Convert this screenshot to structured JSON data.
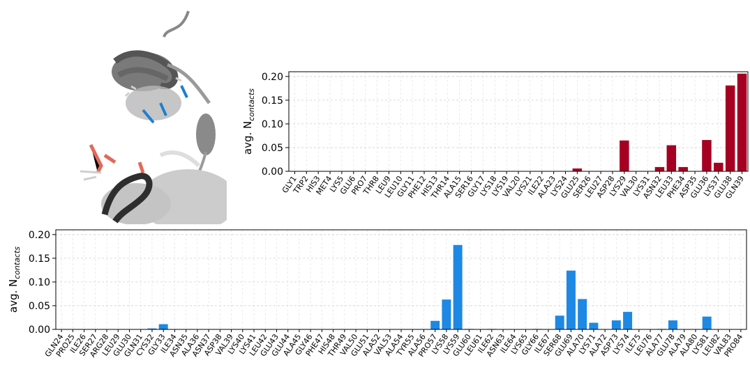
{
  "chart_data": [
    {
      "type": "bar",
      "ylabel": "avg. N",
      "ylabel_sub": "contacts",
      "ylim": [
        0,
        0.21
      ],
      "yticks": [
        "0.00",
        "0.05",
        "0.10",
        "0.15",
        "0.20"
      ],
      "grid": true,
      "color": "#a50021",
      "categories": [
        "GLY1",
        "TRP2",
        "HIS3",
        "MET4",
        "LYS5",
        "GLU6",
        "PRO7",
        "THR8",
        "LEU9",
        "LEU10",
        "GLY11",
        "PHE12",
        "HIS13",
        "THR14",
        "ALA15",
        "SER16",
        "GLY17",
        "LYS18",
        "LYS19",
        "VAL20",
        "LYS21",
        "ILE22",
        "ALA23",
        "LYS24",
        "GLU25",
        "SER26",
        "LEU27",
        "ASP28",
        "LYS29",
        "VAL30",
        "LYS31",
        "ASN32",
        "LEU33",
        "PHE34",
        "ASP35",
        "GLU36",
        "LYS37",
        "GLU38",
        "GLN39"
      ],
      "values": [
        0,
        0,
        0,
        0,
        0,
        0,
        0,
        0,
        0,
        0,
        0,
        0,
        0,
        0,
        0,
        0,
        0,
        0,
        0,
        0,
        0,
        0,
        0,
        0,
        0.006,
        0,
        0,
        0,
        0.065,
        0,
        0,
        0.009,
        0.055,
        0.009,
        0,
        0.066,
        0.018,
        0.181,
        0.206
      ]
    },
    {
      "type": "bar",
      "ylabel": "avg. N",
      "ylabel_sub": "contacts",
      "ylim": [
        0,
        0.21
      ],
      "yticks": [
        "0.00",
        "0.05",
        "0.10",
        "0.15",
        "0.20"
      ],
      "grid": true,
      "color": "#1e88e5",
      "categories": [
        "GLN24",
        "PRO25",
        "ILE26",
        "SER27",
        "ARG28",
        "LEU29",
        "GLU30",
        "GLN31",
        "CYS32",
        "GLY33",
        "ILE34",
        "ASN35",
        "ALA36",
        "ASN37",
        "ASP38",
        "VAL39",
        "LYS40",
        "LYS41",
        "LEU42",
        "GLU43",
        "GLU44",
        "ALA45",
        "GLY46",
        "PHE47",
        "HIS48",
        "THR49",
        "VAL50",
        "GLU51",
        "ALA52",
        "VAL53",
        "ALA54",
        "TYR55",
        "ALA56",
        "PRO57",
        "LYS58",
        "LYS59",
        "GLU60",
        "LEU61",
        "ILE62",
        "ASN63",
        "ILE64",
        "LYS65",
        "GLY66",
        "ILE67",
        "SER68",
        "GLU69",
        "ALA70",
        "LYS71",
        "ALA72",
        "ASP73",
        "LYS74",
        "ILE75",
        "LEU76",
        "ALA77",
        "GLU78",
        "ALA79",
        "ALA80",
        "LYS81",
        "LEU82",
        "VAL83",
        "PRO84"
      ],
      "values": [
        0,
        0,
        0,
        0,
        0,
        0,
        0,
        0,
        0.002,
        0.011,
        0,
        0,
        0,
        0,
        0,
        0,
        0,
        0,
        0,
        0,
        0,
        0,
        0,
        0,
        0,
        0,
        0,
        0,
        0,
        0,
        0,
        0,
        0,
        0.018,
        0.063,
        0.178,
        0.001,
        0,
        0.001,
        0,
        0,
        0,
        0.001,
        0,
        0.029,
        0.124,
        0.064,
        0.014,
        0,
        0.019,
        0.037,
        0,
        0,
        0.001,
        0.019,
        0,
        0,
        0.027,
        0,
        0,
        0
      ]
    }
  ]
}
